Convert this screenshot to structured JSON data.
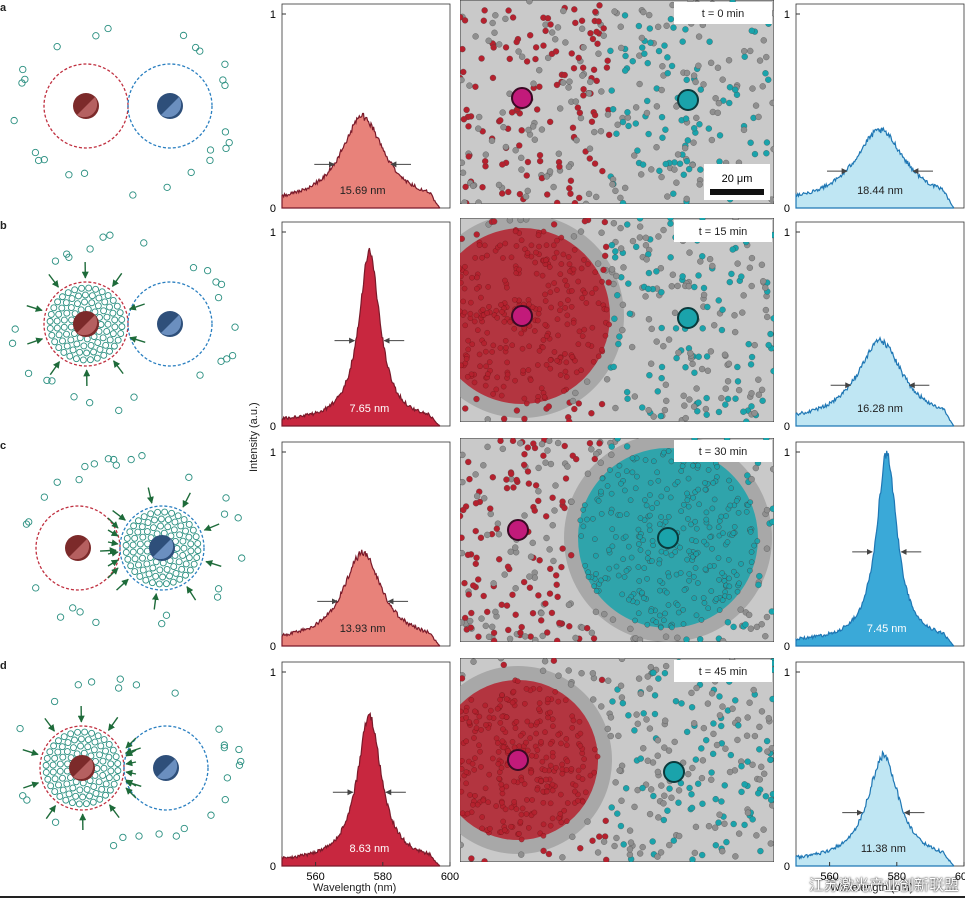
{
  "rows": [
    {
      "label": "a",
      "time_label": "t = 0 min",
      "left_spectrum": {
        "fwhm_label": "15.69 nm",
        "peak": 0.45,
        "fwhm_nm": 15.69,
        "center_nm": 574,
        "intensity": "light"
      },
      "right_spectrum": {
        "fwhm_label": "18.44 nm",
        "peak": 0.38,
        "fwhm_nm": 18.44,
        "center_nm": 575,
        "intensity": "light"
      },
      "scale_bar_label": "20 μm"
    },
    {
      "label": "b",
      "time_label": "t = 15 min",
      "left_spectrum": {
        "fwhm_label": "7.65 nm",
        "peak": 0.88,
        "fwhm_nm": 7.65,
        "center_nm": 576,
        "intensity": "dark"
      },
      "right_spectrum": {
        "fwhm_label": "16.28 nm",
        "peak": 0.42,
        "fwhm_nm": 16.28,
        "center_nm": 575,
        "intensity": "light"
      }
    },
    {
      "label": "c",
      "time_label": "t = 30 min",
      "left_spectrum": {
        "fwhm_label": "13.93 nm",
        "peak": 0.46,
        "fwhm_nm": 13.93,
        "center_nm": 574,
        "intensity": "light"
      },
      "right_spectrum": {
        "fwhm_label": "7.45 nm",
        "peak": 0.97,
        "fwhm_nm": 7.45,
        "center_nm": 577,
        "intensity": "dark"
      }
    },
    {
      "label": "d",
      "time_label": "t = 45 min",
      "left_spectrum": {
        "fwhm_label": "8.63 nm",
        "peak": 0.76,
        "fwhm_nm": 8.63,
        "center_nm": 576,
        "intensity": "dark"
      },
      "right_spectrum": {
        "fwhm_label": "11.38 nm",
        "peak": 0.55,
        "fwhm_nm": 11.38,
        "center_nm": 576,
        "intensity": "light"
      }
    }
  ],
  "axes": {
    "y_label": "Intensity (a.u.)",
    "x_label": "Wavelength (nm)",
    "y_tick_top": "1",
    "y_tick_bottom": "0",
    "x_ticks": [
      "560",
      "580",
      "600"
    ],
    "x_range": [
      550,
      600
    ],
    "y_range": [
      0,
      1
    ]
  },
  "colors": {
    "red_light": "#e8827a",
    "red_dark": "#c8273f",
    "red_line": "#7a1a2a",
    "blue_light": "#bfe6f3",
    "blue_dark": "#3aa9d8",
    "blue_line": "#1f77b4",
    "red_particle": "#b5212e",
    "cyan_particle": "#1aa3ab",
    "gray_particle": "#8f8f8f"
  },
  "watermark": "江苏激光产业创新联盟"
}
